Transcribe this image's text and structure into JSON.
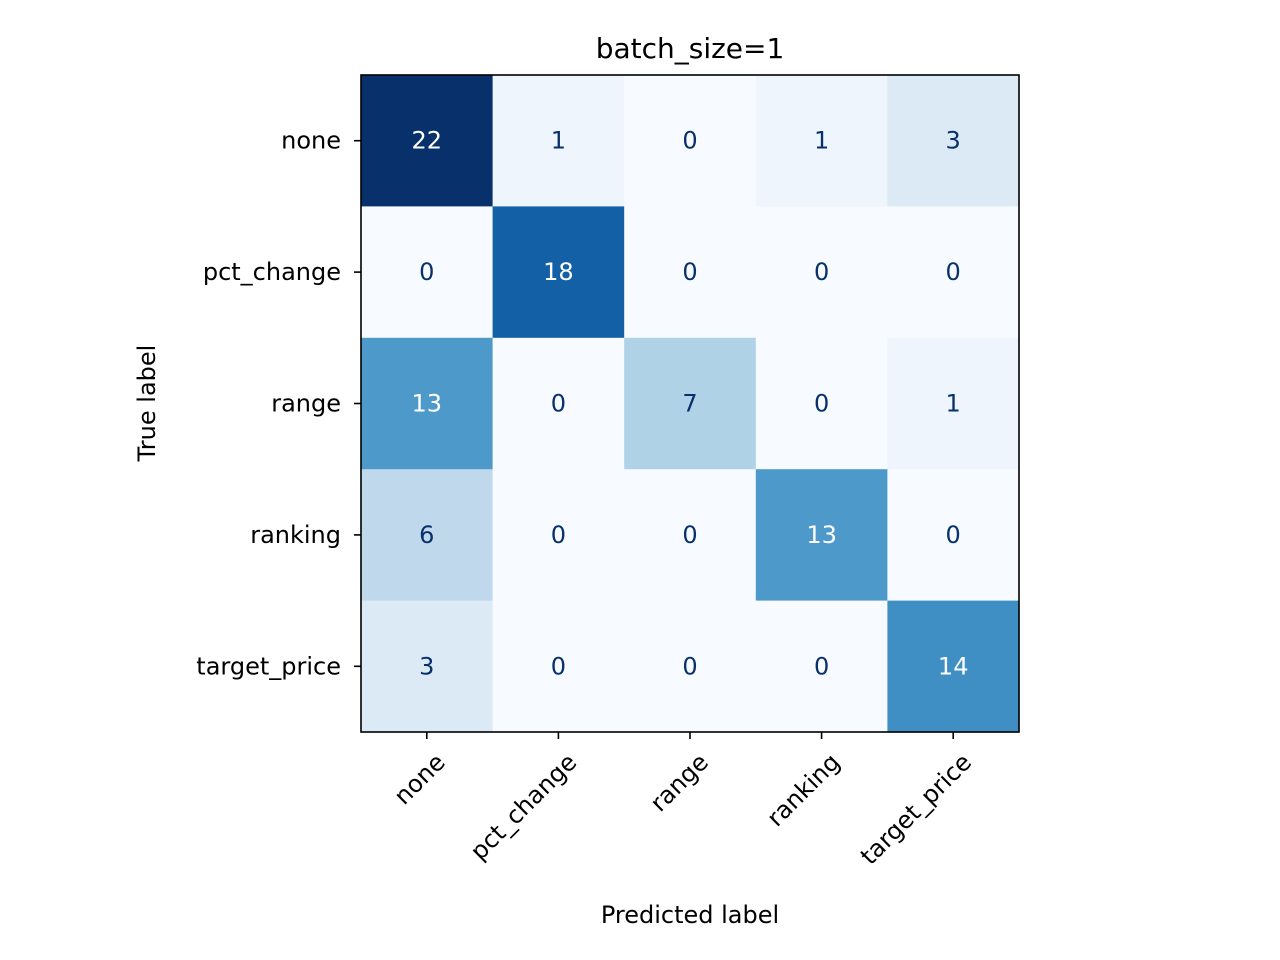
{
  "chart_data": {
    "type": "heatmap",
    "title": "batch_size=1",
    "xlabel": "Predicted label",
    "ylabel": "True label",
    "x_categories": [
      "none",
      "pct_change",
      "range",
      "ranking",
      "target_price"
    ],
    "y_categories": [
      "none",
      "pct_change",
      "range",
      "ranking",
      "target_price"
    ],
    "values": [
      [
        22,
        1,
        0,
        1,
        3
      ],
      [
        0,
        18,
        0,
        0,
        0
      ],
      [
        13,
        0,
        7,
        0,
        1
      ],
      [
        6,
        0,
        0,
        13,
        0
      ],
      [
        3,
        0,
        0,
        0,
        14
      ]
    ],
    "colormap": "Blues",
    "color_range": [
      0,
      22
    ],
    "cmap_low": "#f7fbff",
    "cmap_high": "#08306b",
    "text_dark": "#08306b",
    "text_light": "#ffffff",
    "grid": false,
    "colorbar": false
  }
}
